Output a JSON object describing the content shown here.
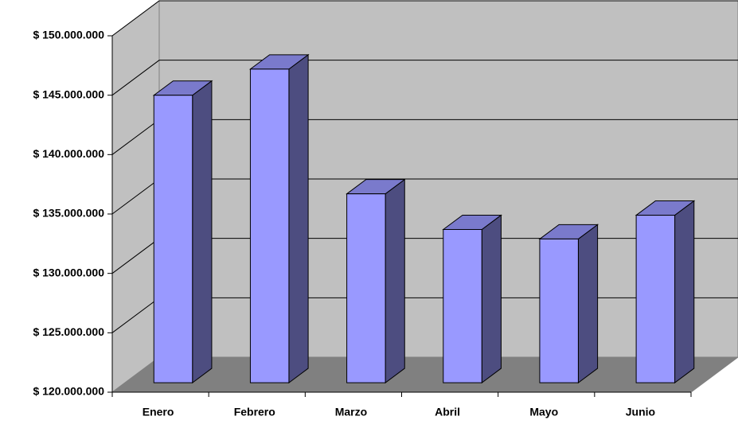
{
  "chart_data": {
    "type": "bar3d",
    "categories": [
      "Enero",
      "Febrero",
      "Marzo",
      "Abril",
      "Mayo",
      "Junio"
    ],
    "values": [
      144200000,
      146400000,
      135900000,
      132900000,
      132100000,
      134100000
    ],
    "color": "#9999ff",
    "ylim": [
      120000000,
      150000000
    ],
    "yticks": [
      {
        "value": 120000000,
        "label": "$ 120.000.000"
      },
      {
        "value": 125000000,
        "label": "$ 125.000.000"
      },
      {
        "value": 130000000,
        "label": "$ 130.000.000"
      },
      {
        "value": 135000000,
        "label": "$ 135.000.000"
      },
      {
        "value": 140000000,
        "label": "$ 140.000.000"
      },
      {
        "value": 145000000,
        "label": "$ 145.000.000"
      },
      {
        "value": 150000000,
        "label": "$ 150.000.000"
      }
    ],
    "grid": true
  }
}
